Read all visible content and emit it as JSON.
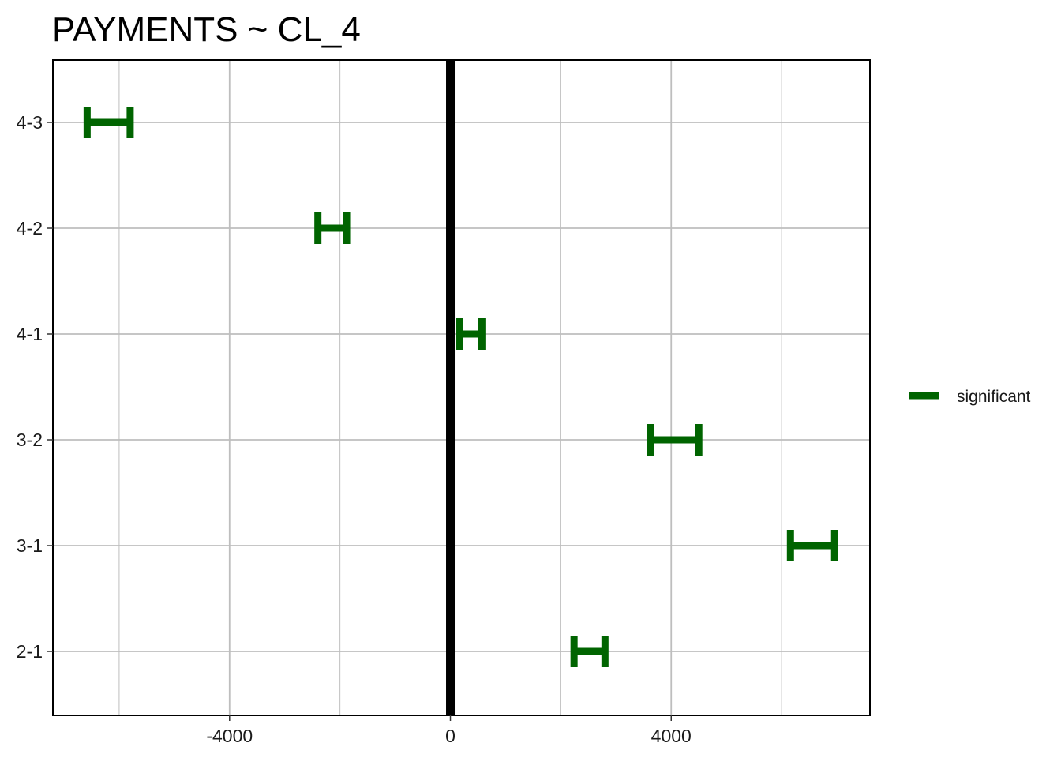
{
  "chart_data": {
    "type": "errorbar",
    "title": "PAYMENTS  ~ CL_4",
    "xlabel": "",
    "ylabel": "",
    "categories": [
      "4-3",
      "4-2",
      "4-1",
      "3-2",
      "3-1",
      "2-1"
    ],
    "series": [
      {
        "name": "significant",
        "color": "#006400",
        "intervals": [
          {
            "category": "4-3",
            "low": -6580,
            "high": -5800
          },
          {
            "category": "4-2",
            "low": -2400,
            "high": -1880
          },
          {
            "category": "4-1",
            "low": 170,
            "high": 570
          },
          {
            "category": "3-2",
            "low": 3620,
            "high": 4500
          },
          {
            "category": "3-1",
            "low": 6160,
            "high": 6960
          },
          {
            "category": "2-1",
            "low": 2240,
            "high": 2800
          }
        ]
      }
    ],
    "xlim": [
      -7200,
      7600
    ],
    "x_ticks": [
      -4000,
      0,
      4000
    ],
    "x_tick_labels": [
      "-4000",
      "0",
      "4000"
    ],
    "x_minor_gridlines": [
      -6000,
      -2000,
      2000,
      6000
    ],
    "reference_line_x": 0,
    "reference_line_color": "#000000",
    "grid": true,
    "gridline_color": "#bebebe",
    "legend_position": "right"
  }
}
